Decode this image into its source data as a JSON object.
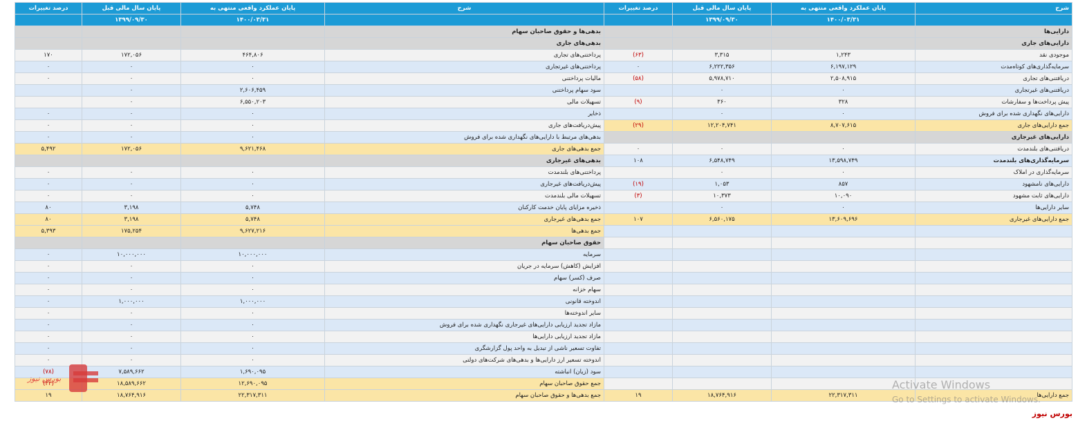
{
  "headers": {
    "left": {
      "desc": "شرح",
      "current": "پایان عملکرد واقعی منتهی به",
      "prev": "پایان سال مالی قبل",
      "change": "درصد تغییرات",
      "current_date": "۱۴۰۰/۰۳/۳۱",
      "prev_date": "۱۳۹۹/۰۹/۳۰"
    },
    "right": {
      "desc": "شرح",
      "current": "پایان عملکرد واقعی منتهی به",
      "prev": "پایان سال مالی قبل",
      "change": "درصد تغییرات",
      "current_date": "۱۴۰۰/۰۳/۳۱",
      "prev_date": "۱۳۹۹/۰۹/۳۰"
    }
  },
  "rows": [
    {
      "style": "sec",
      "L": [
        "بدهی‌ها و حقوق صاحبان سهام",
        "",
        "",
        ""
      ],
      "R": [
        "دارایی‌ها",
        "",
        "",
        ""
      ]
    },
    {
      "style": "sec",
      "L": [
        "بدهی‌های جاری",
        "",
        "",
        ""
      ],
      "R": [
        "دارایی‌های جاری",
        "",
        "",
        ""
      ]
    },
    {
      "style": "bg0",
      "L": [
        "پرداختنی‌های تجاری",
        "۴۶۴,۸۰۶",
        "۱۷۲,۰۵۶",
        "۱۷۰"
      ],
      "R": [
        "موجودی نقد",
        "۱,۲۴۳",
        "۳,۳۱۵",
        "(۶۳)"
      ]
    },
    {
      "style": "bg1",
      "L": [
        "پرداختنی‌های غیرتجاری",
        "۰",
        "۰",
        "۰"
      ],
      "R": [
        "سرمایه‌گذاری‌های کوتاه‌مدت",
        "۶,۱۹۷,۱۲۹",
        "۶,۲۲۲,۳۵۶",
        "۰"
      ]
    },
    {
      "style": "bg0",
      "L": [
        "مالیات پرداختنی",
        "۰",
        "۰",
        "۰"
      ],
      "R": [
        "دریافتنی‌های تجاری",
        "۲,۵۰۸,۹۱۵",
        "۵,۹۷۸,۷۱۰",
        "(۵۸)"
      ]
    },
    {
      "style": "bg1",
      "L": [
        "سود سهام پرداختنی",
        "۲,۶۰۶,۴۵۹",
        "۰",
        ""
      ],
      "R": [
        "دریافتنی‌های غیرتجاری",
        "۰",
        "۰",
        ""
      ]
    },
    {
      "style": "bg0",
      "L": [
        "تسهیلات مالی",
        "۶,۵۵۰,۲۰۳",
        "۰",
        ""
      ],
      "R": [
        "پیش پرداخت‌ها و سفارشات",
        "۳۲۸",
        "۳۶۰",
        "(۹)"
      ]
    },
    {
      "style": "bg1",
      "L": [
        "ذخایر",
        "۰",
        "۰",
        "۰"
      ],
      "R": [
        "دارایی‌های نگهداری شده برای فروش",
        "۰",
        "۰",
        ""
      ]
    },
    {
      "style": "bg0",
      "L": [
        "پیش‌دریافت‌های جاری",
        "۰",
        "۰",
        "۰"
      ],
      "R": [
        "جمع دارایی‌های جاری",
        "۸,۷۰۷,۶۱۵",
        "۱۲,۲۰۴,۷۴۱",
        "(۲۹)"
      ],
      "Rtot": true
    },
    {
      "style": "bg1",
      "L": [
        "بدهی‌های مرتبط با دارایی‌های نگهداری شده برای فروش",
        "۰",
        "۰",
        "۰"
      ],
      "R": [
        "دارایی‌های غیرجاری",
        "",
        "",
        ""
      ],
      "Rsec": true
    },
    {
      "style": "tot",
      "L": [
        "جمع بدهی‌های جاری",
        "۹,۶۲۱,۴۶۸",
        "۱۷۲,۰۵۶",
        "۵,۴۹۲"
      ],
      "R": [
        "دریافتنی‌های بلندمدت",
        "۰",
        "۰",
        "۰"
      ],
      "Rstyle": "bg0"
    },
    {
      "style": "sec",
      "L": [
        "بدهی‌های غیرجاری",
        "",
        "",
        ""
      ],
      "R": [
        "سرمایه‌گذاری‌های بلندمدت",
        "۱۳,۵۹۸,۷۴۹",
        "۶,۵۴۸,۷۴۹",
        "۱۰۸"
      ],
      "Rstyle": "bg1"
    },
    {
      "style": "bg0",
      "L": [
        "پرداختنی‌های بلندمدت",
        "۰",
        "۰",
        "۰"
      ],
      "R": [
        "سرمایه‌گذاری در املاک",
        "۰",
        "۰",
        ""
      ]
    },
    {
      "style": "bg1",
      "L": [
        "پیش‌دریافت‌های غیرجاری",
        "۰",
        "۰",
        "۰"
      ],
      "R": [
        "دارایی‌های نامشهود",
        "۸۵۷",
        "۱,۰۵۳",
        "(۱۹)"
      ]
    },
    {
      "style": "bg0",
      "L": [
        "تسهیلات مالی بلندمدت",
        "۰",
        "۰",
        "۰"
      ],
      "R": [
        "دارایی‌های ثابت مشهود",
        "۱۰,۰۹۰",
        "۱۰,۳۷۳",
        "(۳)"
      ]
    },
    {
      "style": "bg1",
      "L": [
        "ذخیره مزایای پایان خدمت کارکنان",
        "۵,۷۴۸",
        "۳,۱۹۸",
        "۸۰"
      ],
      "R": [
        "سایر دارایی‌ها",
        "۰",
        "۰",
        ""
      ]
    },
    {
      "style": "bg0",
      "L": [
        "جمع بدهی‌های غیرجاری",
        "۵,۷۴۸",
        "۳,۱۹۸",
        "۸۰"
      ],
      "R": [
        "جمع دارایی‌های غیرجاری",
        "۱۳,۶۰۹,۶۹۶",
        "۶,۵۶۰,۱۷۵",
        "۱۰۷"
      ],
      "Lstyle": "tot",
      "Rtot": true
    },
    {
      "style": "tot",
      "L": [
        "جمع بدهی‌ها",
        "۹,۶۲۷,۲۱۶",
        "۱۷۵,۲۵۴",
        "۵,۳۹۳"
      ],
      "R": [
        "",
        "",
        "",
        ""
      ],
      "Rstyle": "bg1"
    },
    {
      "style": "sec",
      "L": [
        "حقوق صاحبان سهام",
        "",
        "",
        ""
      ],
      "R": [
        "",
        "",
        "",
        ""
      ],
      "Rstyle": "bg0"
    },
    {
      "style": "bg1",
      "L": [
        "سرمایه",
        "۱۰,۰۰۰,۰۰۰",
        "۱۰,۰۰۰,۰۰۰",
        "۰"
      ],
      "R": [
        "",
        "",
        "",
        ""
      ]
    },
    {
      "style": "bg0",
      "L": [
        "افزایش (کاهش) سرمایه در جریان",
        "۰",
        "۰",
        "۰"
      ],
      "R": [
        "",
        "",
        "",
        ""
      ]
    },
    {
      "style": "bg1",
      "L": [
        "صرف (کسر) سهام",
        "۰",
        "۰",
        "۰"
      ],
      "R": [
        "",
        "",
        "",
        ""
      ]
    },
    {
      "style": "bg0",
      "L": [
        "سهام خزانه",
        "۰",
        "۰",
        "۰"
      ],
      "R": [
        "",
        "",
        "",
        ""
      ]
    },
    {
      "style": "bg1",
      "L": [
        "اندوخته قانونی",
        "۱,۰۰۰,۰۰۰",
        "۱,۰۰۰,۰۰۰",
        "۰"
      ],
      "R": [
        "",
        "",
        "",
        ""
      ]
    },
    {
      "style": "bg0",
      "L": [
        "سایر اندوخته‌ها",
        "۰",
        "۰",
        "۰"
      ],
      "R": [
        "",
        "",
        "",
        ""
      ]
    },
    {
      "style": "bg1",
      "L": [
        "مازاد تجدید ارزیابی دارایی‌های غیرجاری نگهداری شده برای فروش",
        "۰",
        "۰",
        "۰"
      ],
      "R": [
        "",
        "",
        "",
        ""
      ]
    },
    {
      "style": "bg0",
      "L": [
        "مازاد تجدید ارزیابی دارایی‌ها",
        "۰",
        "۰",
        "۰"
      ],
      "R": [
        "",
        "",
        "",
        ""
      ]
    },
    {
      "style": "bg1",
      "L": [
        "تفاوت تسعیر ناشی از تبدیل به واحد پول گزارشگری",
        "۰",
        "۰",
        "۰"
      ],
      "R": [
        "",
        "",
        "",
        ""
      ]
    },
    {
      "style": "bg0",
      "L": [
        "اندوخته تسعیر ارز دارایی‌ها و بدهی‌های شرکت‌های دولتی",
        "۰",
        "۰",
        "۰"
      ],
      "R": [
        "",
        "",
        "",
        ""
      ]
    },
    {
      "style": "bg1",
      "L": [
        "سود (زیان) انباشته",
        "۱,۶۹۰,۰۹۵",
        "۷,۵۸۹,۶۶۲",
        "(۷۸)"
      ],
      "R": [
        "",
        "",
        "",
        ""
      ]
    },
    {
      "style": "tot",
      "L": [
        "جمع حقوق صاحبان سهام",
        "۱۲,۶۹۰,۰۹۵",
        "۱۸,۵۸۹,۶۶۲",
        "(۳۲)"
      ],
      "R": [
        "",
        "",
        "",
        ""
      ],
      "Rstyle": "bg0"
    },
    {
      "style": "tot",
      "L": [
        "جمع بدهی‌ها و حقوق صاحبان سهام",
        "۲۲,۳۱۷,۳۱۱",
        "۱۸,۷۶۴,۹۱۶",
        "۱۹"
      ],
      "R": [
        "جمع دارایی‌ها",
        "۲۲,۳۱۷,۳۱۱",
        "۱۸,۷۶۴,۹۱۶",
        "۱۹"
      ]
    }
  ],
  "watermark": {
    "title": "Activate Windows",
    "subtitle": "Go to Settings to activate Windows."
  },
  "brand": "بورس نیوز",
  "logo_text": "بورس نیوز",
  "colors": {
    "header": "#1c9bd6",
    "section": "#d6d6d6",
    "total": "#fbe5a6",
    "row_a": "#f2f2f2",
    "row_b": "#dbe8f7",
    "negative": "#c00000"
  }
}
